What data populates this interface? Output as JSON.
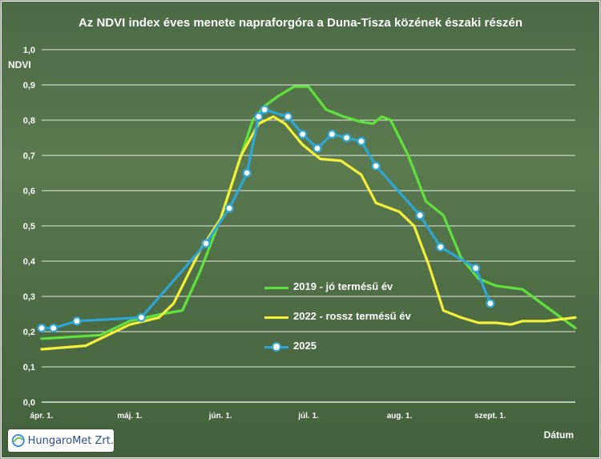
{
  "chart_data": {
    "type": "line",
    "title": "Az NDVI index éves menete napraforgóra a Duna-Tisza közének északi részén",
    "ylabel": "NDVI",
    "xlabel": "Dátum",
    "ylim": [
      0,
      1.0
    ],
    "yticks": [
      "0,0",
      "0,1",
      "0,2",
      "0,3",
      "0,4",
      "0,5",
      "0,6",
      "0,7",
      "0,8",
      "0,9",
      "1,0"
    ],
    "xlim": [
      "2000-04-01",
      "2000-09-30"
    ],
    "xticks": [
      {
        "date": "2000-04-01",
        "label": "ápr. 1."
      },
      {
        "date": "2000-05-01",
        "label": "máj. 1."
      },
      {
        "date": "2000-06-01",
        "label": "jún. 1."
      },
      {
        "date": "2000-07-01",
        "label": "júl. 1."
      },
      {
        "date": "2000-08-01",
        "label": "aug. 1."
      },
      {
        "date": "2000-09-01",
        "label": "szept. 1."
      }
    ],
    "grid": true,
    "legend_position": "center",
    "series": [
      {
        "name": "2019 - jó termésű év",
        "color": "#5fe33c",
        "marker": false,
        "x": [
          "2000-04-01",
          "2000-04-21",
          "2000-05-01",
          "2000-05-12",
          "2000-05-19",
          "2000-05-25",
          "2000-06-01",
          "2000-06-08",
          "2000-06-12",
          "2000-06-16",
          "2000-06-21",
          "2000-06-26",
          "2000-07-01",
          "2000-07-07",
          "2000-07-13",
          "2000-07-19",
          "2000-07-23",
          "2000-07-26",
          "2000-07-29",
          "2000-08-04",
          "2000-08-10",
          "2000-08-16",
          "2000-08-22",
          "2000-08-28",
          "2000-09-03",
          "2000-09-12",
          "2000-09-30"
        ],
        "values": [
          0.18,
          0.19,
          0.23,
          0.25,
          0.26,
          0.37,
          0.52,
          0.7,
          0.8,
          0.84,
          0.87,
          0.895,
          0.895,
          0.83,
          0.81,
          0.795,
          0.79,
          0.81,
          0.8,
          0.7,
          0.57,
          0.53,
          0.41,
          0.35,
          0.33,
          0.32,
          0.21
        ]
      },
      {
        "name": "2022 - rossz termésű év",
        "color": "#f5f03a",
        "marker": false,
        "x": [
          "2000-04-01",
          "2000-04-16",
          "2000-05-01",
          "2000-05-11",
          "2000-05-16",
          "2000-05-25",
          "2000-06-01",
          "2000-06-08",
          "2000-06-14",
          "2000-06-19",
          "2000-06-23",
          "2000-06-29",
          "2000-07-05",
          "2000-07-12",
          "2000-07-19",
          "2000-07-24",
          "2000-08-01",
          "2000-08-06",
          "2000-08-11",
          "2000-08-16",
          "2000-08-22",
          "2000-08-28",
          "2000-09-03",
          "2000-09-08",
          "2000-09-12",
          "2000-09-20",
          "2000-09-30"
        ],
        "values": [
          0.15,
          0.16,
          0.22,
          0.24,
          0.28,
          0.43,
          0.52,
          0.7,
          0.79,
          0.81,
          0.79,
          0.73,
          0.69,
          0.685,
          0.645,
          0.565,
          0.54,
          0.5,
          0.39,
          0.26,
          0.24,
          0.225,
          0.225,
          0.22,
          0.23,
          0.23,
          0.24
        ]
      },
      {
        "name": "2025",
        "color": "#2fa7d6",
        "marker": true,
        "x": [
          "2000-04-01",
          "2000-04-05",
          "2000-04-13",
          "2000-05-05",
          "2000-05-27",
          "2000-06-04",
          "2000-06-10",
          "2000-06-14",
          "2000-06-16",
          "2000-06-24",
          "2000-06-29",
          "2000-07-04",
          "2000-07-09",
          "2000-07-14",
          "2000-07-19",
          "2000-07-24",
          "2000-08-08",
          "2000-08-15",
          "2000-08-27",
          "2000-09-01"
        ],
        "values": [
          0.21,
          0.21,
          0.23,
          0.24,
          0.45,
          0.55,
          0.65,
          0.81,
          0.83,
          0.81,
          0.76,
          0.72,
          0.76,
          0.75,
          0.74,
          0.67,
          0.53,
          0.44,
          0.38,
          0.28
        ]
      }
    ]
  },
  "logo": {
    "text": "HungaroMet Zrt."
  }
}
